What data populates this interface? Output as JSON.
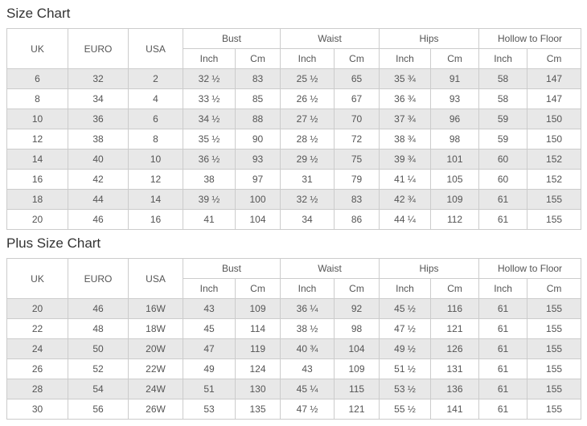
{
  "colors": {
    "border": "#cccccc",
    "stripe": "#e8e8e8",
    "cell_text": "#555555",
    "title_text": "#333333",
    "background": "#ffffff"
  },
  "headers": {
    "corner": [
      "UK",
      "EURO",
      "USA"
    ],
    "groups": [
      "Bust",
      "Waist",
      "Hips",
      "Hollow to Floor"
    ],
    "units": [
      "Inch",
      "Cm"
    ]
  },
  "tables": [
    {
      "title": "Size Chart",
      "rows": [
        [
          "6",
          "32",
          "2",
          "32 ½",
          "83",
          "25 ½",
          "65",
          "35 ¾",
          "91",
          "58",
          "147"
        ],
        [
          "8",
          "34",
          "4",
          "33 ½",
          "85",
          "26 ½",
          "67",
          "36 ¾",
          "93",
          "58",
          "147"
        ],
        [
          "10",
          "36",
          "6",
          "34 ½",
          "88",
          "27 ½",
          "70",
          "37 ¾",
          "96",
          "59",
          "150"
        ],
        [
          "12",
          "38",
          "8",
          "35 ½",
          "90",
          "28 ½",
          "72",
          "38 ¾",
          "98",
          "59",
          "150"
        ],
        [
          "14",
          "40",
          "10",
          "36 ½",
          "93",
          "29 ½",
          "75",
          "39 ¾",
          "101",
          "60",
          "152"
        ],
        [
          "16",
          "42",
          "12",
          "38",
          "97",
          "31",
          "79",
          "41 ¼",
          "105",
          "60",
          "152"
        ],
        [
          "18",
          "44",
          "14",
          "39 ½",
          "100",
          "32 ½",
          "83",
          "42 ¾",
          "109",
          "61",
          "155"
        ],
        [
          "20",
          "46",
          "16",
          "41",
          "104",
          "34",
          "86",
          "44 ¼",
          "112",
          "61",
          "155"
        ]
      ]
    },
    {
      "title": "Plus Size Chart",
      "rows": [
        [
          "20",
          "46",
          "16W",
          "43",
          "109",
          "36 ¼",
          "92",
          "45 ½",
          "116",
          "61",
          "155"
        ],
        [
          "22",
          "48",
          "18W",
          "45",
          "114",
          "38 ½",
          "98",
          "47 ½",
          "121",
          "61",
          "155"
        ],
        [
          "24",
          "50",
          "20W",
          "47",
          "119",
          "40 ¾",
          "104",
          "49 ½",
          "126",
          "61",
          "155"
        ],
        [
          "26",
          "52",
          "22W",
          "49",
          "124",
          "43",
          "109",
          "51 ½",
          "131",
          "61",
          "155"
        ],
        [
          "28",
          "54",
          "24W",
          "51",
          "130",
          "45 ¼",
          "115",
          "53 ½",
          "136",
          "61",
          "155"
        ],
        [
          "30",
          "56",
          "26W",
          "53",
          "135",
          "47 ½",
          "121",
          "55 ½",
          "141",
          "61",
          "155"
        ]
      ]
    }
  ]
}
